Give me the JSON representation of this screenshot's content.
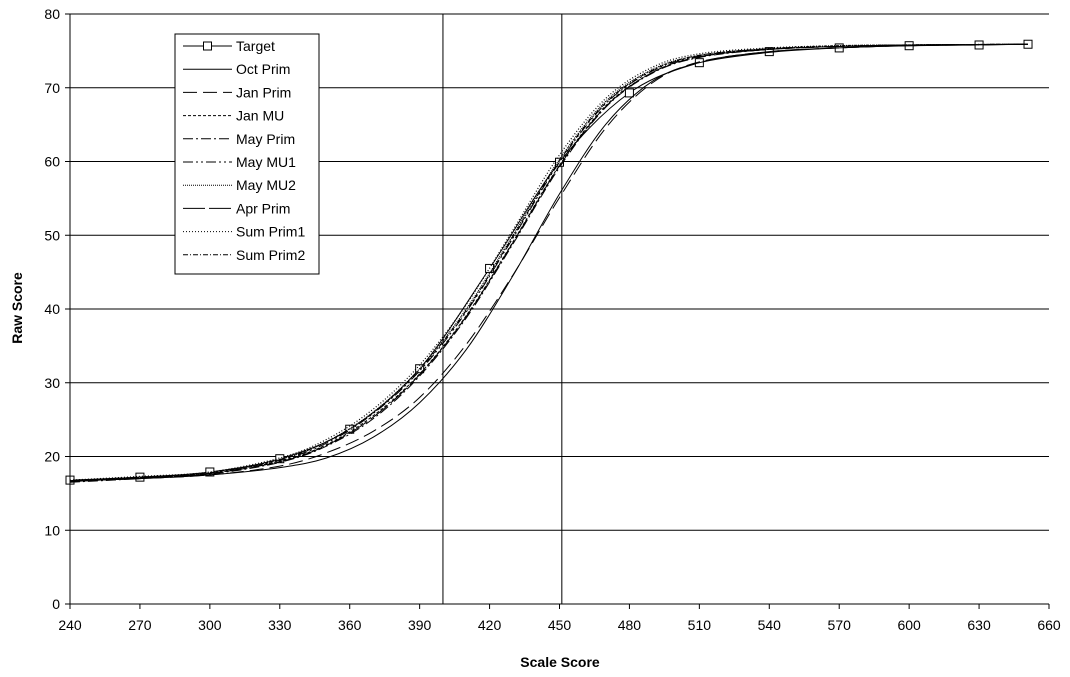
{
  "chart_data": {
    "type": "line",
    "title": "",
    "xlabel": "Scale Score",
    "ylabel": "Raw Score",
    "xlim": [
      240,
      660
    ],
    "ylim": [
      0,
      80
    ],
    "xticks": [
      240,
      270,
      300,
      330,
      360,
      390,
      420,
      450,
      480,
      510,
      540,
      570,
      600,
      630,
      660
    ],
    "yticks": [
      0,
      10,
      20,
      30,
      40,
      50,
      60,
      70,
      80
    ],
    "grid": "horizontal major gridlines",
    "vertical_reference_lines": [
      400,
      451
    ],
    "legend_position": "top-left, inside plot",
    "series": [
      {
        "name": "Target",
        "dash": "",
        "marker": "square",
        "points": [
          [
            240,
            16.8
          ],
          [
            270,
            17.2
          ],
          [
            300,
            17.9
          ],
          [
            330,
            19.7
          ],
          [
            360,
            23.7
          ],
          [
            390,
            31.9
          ],
          [
            420,
            45.5
          ],
          [
            450,
            59.9
          ],
          [
            480,
            69.3
          ],
          [
            510,
            73.4
          ],
          [
            540,
            74.9
          ],
          [
            570,
            75.4
          ],
          [
            600,
            75.7
          ],
          [
            630,
            75.8
          ],
          [
            651,
            75.9
          ]
        ]
      },
      {
        "name": "Oct Prim",
        "dash": "",
        "points": [
          [
            240,
            16.7
          ],
          [
            270,
            17.0
          ],
          [
            300,
            17.5
          ],
          [
            330,
            18.5
          ],
          [
            350,
            19.8
          ],
          [
            370,
            22.6
          ],
          [
            390,
            27.3
          ],
          [
            410,
            34.5
          ],
          [
            430,
            44.5
          ],
          [
            450,
            55.6
          ],
          [
            470,
            65.1
          ],
          [
            490,
            70.9
          ],
          [
            510,
            73.4
          ],
          [
            540,
            74.8
          ],
          [
            570,
            75.4
          ],
          [
            600,
            75.7
          ],
          [
            651,
            75.9
          ]
        ]
      },
      {
        "name": "Jan Prim",
        "dash": "14,6",
        "points": [
          [
            240,
            16.7
          ],
          [
            270,
            17.0
          ],
          [
            300,
            17.5
          ],
          [
            330,
            18.7
          ],
          [
            350,
            20.5
          ],
          [
            370,
            23.4
          ],
          [
            390,
            28.0
          ],
          [
            410,
            35.2
          ],
          [
            430,
            44.6
          ],
          [
            450,
            55.1
          ],
          [
            470,
            64.6
          ],
          [
            490,
            70.7
          ],
          [
            510,
            73.5
          ],
          [
            540,
            74.9
          ],
          [
            570,
            75.4
          ],
          [
            600,
            75.7
          ],
          [
            651,
            75.9
          ]
        ]
      },
      {
        "name": "Jan MU",
        "dash": "3,2",
        "points": [
          [
            240,
            16.6
          ],
          [
            270,
            17.1
          ],
          [
            300,
            17.7
          ],
          [
            330,
            19.4
          ],
          [
            350,
            21.6
          ],
          [
            370,
            25.5
          ],
          [
            390,
            31.2
          ],
          [
            410,
            39.1
          ],
          [
            430,
            49.1
          ],
          [
            450,
            59.5
          ],
          [
            470,
            67.6
          ],
          [
            490,
            72.1
          ],
          [
            510,
            74.2
          ],
          [
            540,
            75.2
          ],
          [
            570,
            75.6
          ],
          [
            600,
            75.8
          ],
          [
            651,
            75.9
          ]
        ]
      },
      {
        "name": "May Prim",
        "dash": "10,3,2,3",
        "points": [
          [
            240,
            16.5
          ],
          [
            270,
            17.0
          ],
          [
            300,
            17.6
          ],
          [
            330,
            19.2
          ],
          [
            350,
            21.4
          ],
          [
            370,
            25.1
          ],
          [
            390,
            30.9
          ],
          [
            410,
            38.8
          ],
          [
            430,
            48.8
          ],
          [
            450,
            59.2
          ],
          [
            470,
            67.4
          ],
          [
            490,
            72.0
          ],
          [
            510,
            74.1
          ],
          [
            540,
            75.2
          ],
          [
            570,
            75.6
          ],
          [
            600,
            75.8
          ],
          [
            651,
            75.9
          ]
        ]
      },
      {
        "name": "May MU1",
        "dash": "10,3,2,3,2,3",
        "points": [
          [
            240,
            16.6
          ],
          [
            270,
            17.1
          ],
          [
            300,
            17.7
          ],
          [
            330,
            19.5
          ],
          [
            350,
            21.8
          ],
          [
            370,
            25.8
          ],
          [
            390,
            31.6
          ],
          [
            410,
            39.6
          ],
          [
            430,
            49.6
          ],
          [
            450,
            59.9
          ],
          [
            470,
            67.9
          ],
          [
            490,
            72.3
          ],
          [
            510,
            74.3
          ],
          [
            540,
            75.3
          ],
          [
            570,
            75.6
          ],
          [
            600,
            75.8
          ],
          [
            651,
            75.9
          ]
        ]
      },
      {
        "name": "May MU2",
        "dash": "1,1",
        "points": [
          [
            240,
            16.7
          ],
          [
            270,
            17.2
          ],
          [
            300,
            17.8
          ],
          [
            330,
            19.6
          ],
          [
            350,
            22.0
          ],
          [
            370,
            26.0
          ],
          [
            390,
            31.9
          ],
          [
            410,
            40.0
          ],
          [
            430,
            50.0
          ],
          [
            450,
            60.3
          ],
          [
            470,
            68.2
          ],
          [
            490,
            72.5
          ],
          [
            510,
            74.4
          ],
          [
            540,
            75.3
          ],
          [
            570,
            75.7
          ],
          [
            600,
            75.8
          ],
          [
            651,
            75.9
          ]
        ]
      },
      {
        "name": "Apr Prim",
        "dash": "22,4",
        "points": [
          [
            240,
            16.6
          ],
          [
            270,
            17.1
          ],
          [
            300,
            17.7
          ],
          [
            330,
            19.3
          ],
          [
            350,
            21.5
          ],
          [
            370,
            25.3
          ],
          [
            390,
            31.1
          ],
          [
            410,
            39.0
          ],
          [
            430,
            49.0
          ],
          [
            450,
            59.4
          ],
          [
            470,
            67.5
          ],
          [
            490,
            72.1
          ],
          [
            510,
            74.2
          ],
          [
            540,
            75.2
          ],
          [
            570,
            75.6
          ],
          [
            600,
            75.8
          ],
          [
            651,
            75.9
          ]
        ]
      },
      {
        "name": "Sum Prim1",
        "dash": "1,2",
        "points": [
          [
            240,
            16.8
          ],
          [
            270,
            17.3
          ],
          [
            300,
            17.9
          ],
          [
            330,
            19.8
          ],
          [
            350,
            22.3
          ],
          [
            370,
            26.4
          ],
          [
            390,
            32.4
          ],
          [
            410,
            40.6
          ],
          [
            430,
            50.7
          ],
          [
            450,
            60.9
          ],
          [
            470,
            68.6
          ],
          [
            490,
            72.8
          ],
          [
            510,
            74.6
          ],
          [
            540,
            75.4
          ],
          [
            570,
            75.7
          ],
          [
            600,
            75.8
          ],
          [
            651,
            75.9
          ]
        ]
      },
      {
        "name": "Sum Prim2",
        "dash": "5,2,1,2",
        "points": [
          [
            240,
            16.7
          ],
          [
            270,
            17.2
          ],
          [
            300,
            17.8
          ],
          [
            330,
            19.6
          ],
          [
            350,
            22.0
          ],
          [
            370,
            25.9
          ],
          [
            390,
            31.8
          ],
          [
            410,
            39.8
          ],
          [
            430,
            49.8
          ],
          [
            450,
            60.1
          ],
          [
            470,
            68.0
          ],
          [
            490,
            72.4
          ],
          [
            510,
            74.4
          ],
          [
            540,
            75.3
          ],
          [
            570,
            75.6
          ],
          [
            600,
            75.8
          ],
          [
            651,
            75.9
          ]
        ]
      }
    ]
  }
}
